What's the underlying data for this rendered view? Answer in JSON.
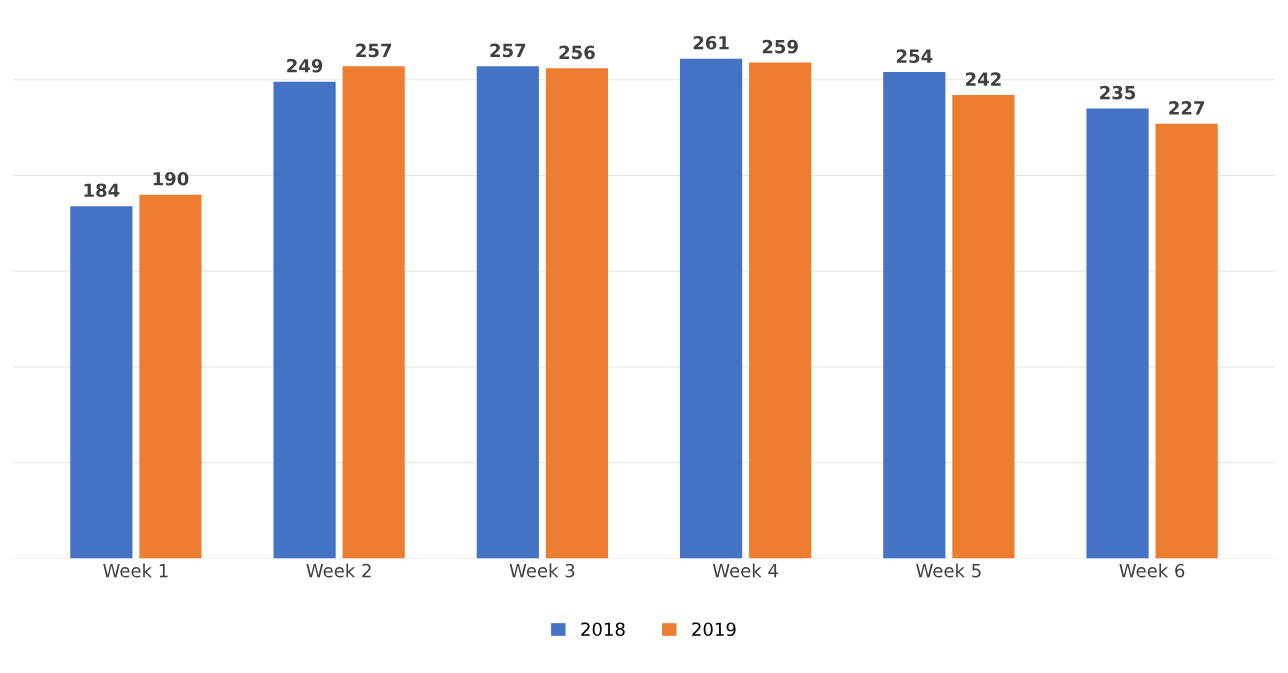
{
  "chart_data": {
    "type": "bar",
    "categories": [
      "Week 1",
      "Week 2",
      "Week 3",
      "Week 4",
      "Week 5",
      "Week 6"
    ],
    "series": [
      {
        "name": "2018",
        "color": "#4472c4",
        "values": [
          184,
          249,
          257,
          261,
          254,
          235
        ]
      },
      {
        "name": "2019",
        "color": "#ed7d31",
        "values": [
          190,
          257,
          256,
          259,
          242,
          227
        ]
      }
    ],
    "data_labels": true,
    "grid": "y",
    "legend": "bottom",
    "tick_labels": "x"
  }
}
